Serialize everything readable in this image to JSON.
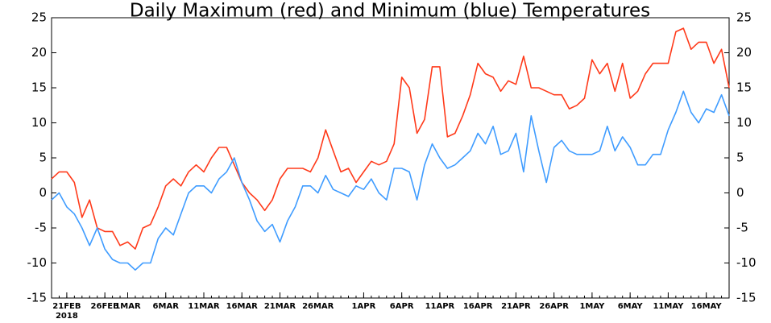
{
  "chart_data": {
    "type": "line",
    "title": "Daily Maximum (red) and Minimum (blue) Temperatures",
    "categories": [
      null,
      null,
      "21FEB",
      null,
      null,
      null,
      null,
      "26FEB",
      null,
      null,
      "1MAR",
      null,
      null,
      null,
      null,
      "6MAR",
      null,
      null,
      null,
      null,
      "11MAR",
      null,
      null,
      null,
      null,
      "16MAR",
      null,
      null,
      null,
      null,
      "21MAR",
      null,
      null,
      null,
      null,
      "26MAR",
      null,
      null,
      null,
      null,
      null,
      "1APR",
      null,
      null,
      null,
      null,
      "6APR",
      null,
      null,
      null,
      null,
      "11APR",
      null,
      null,
      null,
      null,
      "16APR",
      null,
      null,
      null,
      null,
      "21APR",
      null,
      null,
      null,
      null,
      "26APR",
      null,
      null,
      null,
      null,
      "1MAY",
      null,
      null,
      null,
      null,
      "6MAY",
      null,
      null,
      null,
      null,
      "11MAY",
      null,
      null,
      null,
      null,
      "16MAY",
      null,
      null,
      null
    ],
    "x_sublabel": "2018",
    "series": [
      {
        "name": "Maximum",
        "color": "#ff3a1a",
        "values": [
          2,
          3,
          3,
          1.5,
          -3.5,
          -1,
          -5,
          -5.5,
          -5.5,
          -7.5,
          -7,
          -8,
          -5,
          -4.5,
          -2,
          1,
          2,
          1,
          3,
          4,
          3,
          5,
          6.5,
          6.5,
          4,
          1.5,
          0,
          -1,
          -2.5,
          -1,
          2,
          3.5,
          3.5,
          3.5,
          3,
          5,
          9,
          6,
          3,
          3.5,
          1.5,
          3,
          4.5,
          4,
          4.5,
          7,
          16.5,
          15,
          8.5,
          10.5,
          18,
          18,
          8,
          8.5,
          11,
          14,
          18.5,
          17,
          16.5,
          14.5,
          16,
          15.5,
          19.5,
          15,
          15,
          14.5,
          14,
          14,
          12,
          12.5,
          13.5,
          19,
          17,
          18.5,
          14.5,
          18.5,
          13.5,
          14.5,
          17,
          18.5,
          18.5,
          18.5,
          23,
          23.5,
          20.5,
          21.5,
          21.5,
          18.5,
          20.5,
          15
        ]
      },
      {
        "name": "Minimum",
        "color": "#3f9cff",
        "values": [
          -1,
          0,
          -2,
          -3,
          -5,
          -7.5,
          -5,
          -8,
          -9.5,
          -10,
          -10,
          -11,
          -10,
          -10,
          -6.5,
          -5,
          -6,
          -3,
          0,
          1,
          1,
          0,
          2,
          3,
          5,
          1.5,
          -1,
          -4,
          -5.5,
          -4.5,
          -7,
          -4,
          -2,
          1,
          1,
          0,
          2.5,
          0.5,
          0,
          -0.5,
          1,
          0.5,
          2,
          0,
          -1,
          3.5,
          3.5,
          3,
          -1,
          4,
          7,
          5,
          3.5,
          4,
          5,
          6,
          8.5,
          7,
          9.5,
          5.5,
          6,
          8.5,
          3,
          11,
          6,
          1.5,
          6.5,
          7.5,
          6,
          5.5,
          5.5,
          5.5,
          6,
          9.5,
          6,
          8,
          6.5,
          4,
          4,
          5.5,
          5.5,
          9,
          11.5,
          14.5,
          11.5,
          10,
          12,
          11.5,
          14,
          11
        ]
      }
    ],
    "ylim": [
      -15,
      25
    ],
    "yticks": [
      -15,
      -10,
      -5,
      0,
      5,
      10,
      15,
      20,
      25
    ],
    "y2lim": [
      -15,
      25
    ],
    "y2ticks": [
      -15,
      -10,
      -5,
      0,
      5,
      10,
      15,
      20,
      25
    ]
  }
}
